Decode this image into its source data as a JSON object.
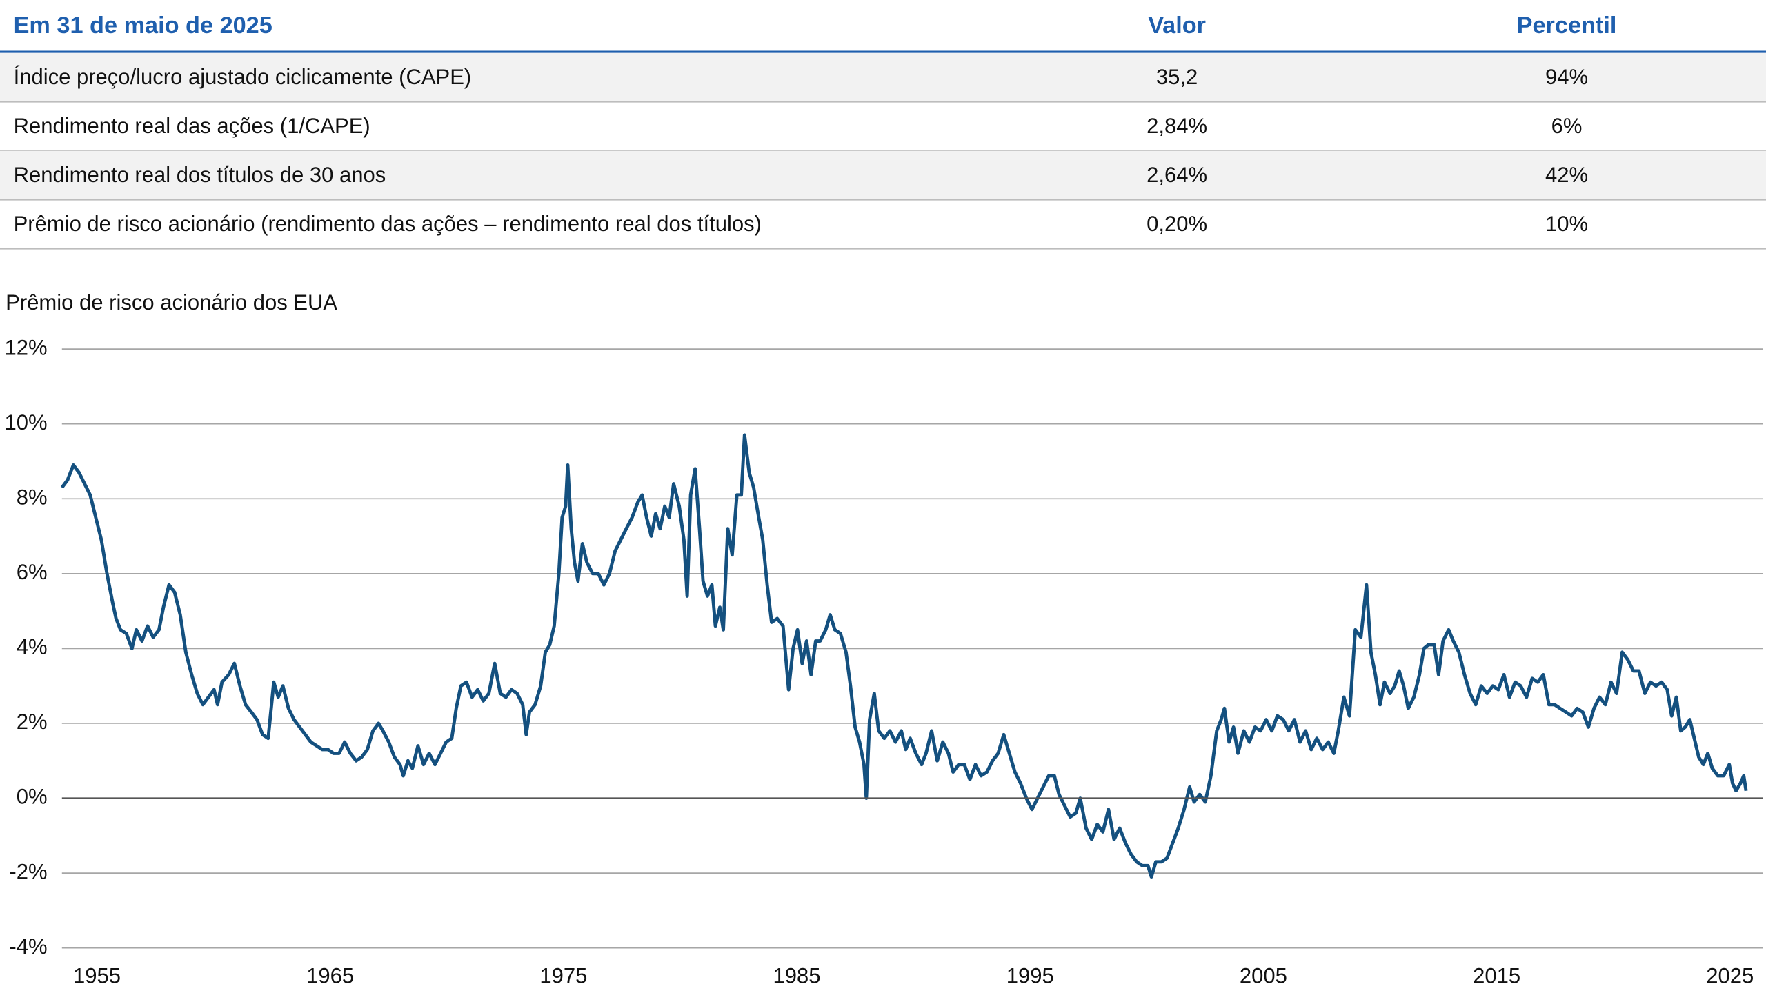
{
  "table": {
    "header": [
      "Em 31 de maio de 2025",
      "Valor",
      "Percentil"
    ],
    "rows": [
      [
        "Índice preço/lucro ajustado ciclicamente (CAPE)",
        "35,2",
        "94%"
      ],
      [
        "Rendimento real das ações (1/CAPE)",
        "2,84%",
        "6%"
      ],
      [
        "Rendimento real dos títulos de 30 anos",
        "2,64%",
        "42%"
      ],
      [
        "Prêmio de risco acionário (rendimento das ações – rendimento real dos títulos)",
        "0,20%",
        "10%"
      ]
    ]
  },
  "chart_data": {
    "type": "line",
    "title": "Prêmio de risco acionário dos EUA",
    "color": "#14507f",
    "grid": true,
    "xlim": [
      1953.5,
      2026.4
    ],
    "xticks": [
      1955,
      1965,
      1975,
      1985,
      1995,
      2005,
      2015,
      2025
    ],
    "ylim": [
      -4,
      12
    ],
    "yticks": [
      {
        "value": -4,
        "label": "-4%"
      },
      {
        "value": -2,
        "label": "-2%"
      },
      {
        "value": 0,
        "label": "0%"
      },
      {
        "value": 2,
        "label": "2%"
      },
      {
        "value": 4,
        "label": "4%"
      },
      {
        "value": 6,
        "label": "6%"
      },
      {
        "value": 8,
        "label": "8%"
      },
      {
        "value": 10,
        "label": "10%"
      },
      {
        "value": 12,
        "label": "12%"
      }
    ],
    "x": [
      1953.5,
      1953.74,
      1953.99,
      1954.23,
      1954.47,
      1954.71,
      1954.95,
      1955.19,
      1955.43,
      1955.68,
      1955.82,
      1956.01,
      1956.26,
      1956.5,
      1956.69,
      1956.93,
      1957.17,
      1957.41,
      1957.66,
      1957.85,
      1958.09,
      1958.33,
      1958.57,
      1958.81,
      1959.06,
      1959.3,
      1959.54,
      1959.78,
      1960.02,
      1960.17,
      1960.36,
      1960.65,
      1960.89,
      1961.13,
      1961.37,
      1961.62,
      1961.86,
      1962.1,
      1962.34,
      1962.58,
      1962.77,
      1962.97,
      1963.21,
      1963.45,
      1963.69,
      1963.93,
      1964.17,
      1964.42,
      1964.66,
      1964.9,
      1965.14,
      1965.38,
      1965.62,
      1965.86,
      1966.11,
      1966.35,
      1966.59,
      1966.83,
      1967.07,
      1967.26,
      1967.51,
      1967.75,
      1967.99,
      1968.13,
      1968.33,
      1968.52,
      1968.76,
      1969.0,
      1969.24,
      1969.49,
      1969.73,
      1969.97,
      1970.21,
      1970.4,
      1970.6,
      1970.84,
      1971.08,
      1971.32,
      1971.56,
      1971.8,
      1972.05,
      1972.29,
      1972.53,
      1972.77,
      1973.01,
      1973.25,
      1973.4,
      1973.54,
      1973.78,
      1974.02,
      1974.22,
      1974.41,
      1974.6,
      1974.8,
      1974.94,
      1975.09,
      1975.18,
      1975.33,
      1975.47,
      1975.62,
      1975.81,
      1976.0,
      1976.25,
      1976.49,
      1976.73,
      1976.97,
      1977.21,
      1977.45,
      1977.69,
      1977.94,
      1978.18,
      1978.37,
      1978.56,
      1978.76,
      1978.95,
      1979.14,
      1979.34,
      1979.53,
      1979.72,
      1979.96,
      1980.16,
      1980.3,
      1980.45,
      1980.64,
      1980.83,
      1980.98,
      1981.17,
      1981.36,
      1981.51,
      1981.7,
      1981.85,
      1982.04,
      1982.23,
      1982.43,
      1982.62,
      1982.76,
      1982.96,
      1983.15,
      1983.34,
      1983.54,
      1983.73,
      1983.92,
      1984.16,
      1984.41,
      1984.65,
      1984.84,
      1985.03,
      1985.23,
      1985.42,
      1985.61,
      1985.81,
      1986.0,
      1986.24,
      1986.43,
      1986.63,
      1986.87,
      1987.11,
      1987.3,
      1987.5,
      1987.69,
      1987.88,
      1987.98,
      1988.12,
      1988.32,
      1988.51,
      1988.75,
      1988.99,
      1989.23,
      1989.48,
      1989.67,
      1989.86,
      1990.1,
      1990.35,
      1990.54,
      1990.78,
      1991.02,
      1991.26,
      1991.5,
      1991.7,
      1991.94,
      1992.18,
      1992.42,
      1992.66,
      1992.9,
      1993.15,
      1993.39,
      1993.63,
      1993.87,
      1994.11,
      1994.35,
      1994.59,
      1994.84,
      1995.08,
      1995.32,
      1995.56,
      1995.8,
      1996.04,
      1996.24,
      1996.48,
      1996.72,
      1996.96,
      1997.15,
      1997.4,
      1997.64,
      1997.88,
      1998.12,
      1998.36,
      1998.6,
      1998.84,
      1999.09,
      1999.33,
      1999.57,
      1999.81,
      2000.05,
      2000.2,
      2000.39,
      2000.63,
      2000.87,
      2001.11,
      2001.35,
      2001.6,
      2001.84,
      2002.03,
      2002.27,
      2002.51,
      2002.75,
      2003.0,
      2003.19,
      2003.33,
      2003.53,
      2003.72,
      2003.91,
      2004.16,
      2004.4,
      2004.64,
      2004.88,
      2005.12,
      2005.36,
      2005.6,
      2005.85,
      2006.09,
      2006.33,
      2006.57,
      2006.81,
      2007.05,
      2007.29,
      2007.54,
      2007.78,
      2008.02,
      2008.21,
      2008.45,
      2008.69,
      2008.94,
      2009.18,
      2009.42,
      2009.61,
      2009.8,
      2010.0,
      2010.19,
      2010.43,
      2010.63,
      2010.82,
      2011.01,
      2011.21,
      2011.45,
      2011.69,
      2011.88,
      2012.07,
      2012.32,
      2012.51,
      2012.7,
      2012.94,
      2013.14,
      2013.38,
      2013.62,
      2013.86,
      2014.1,
      2014.34,
      2014.59,
      2014.83,
      2015.07,
      2015.31,
      2015.55,
      2015.79,
      2016.03,
      2016.28,
      2016.52,
      2016.76,
      2017.0,
      2017.24,
      2017.48,
      2017.72,
      2017.97,
      2018.21,
      2018.45,
      2018.69,
      2018.93,
      2019.17,
      2019.41,
      2019.66,
      2019.9,
      2020.14,
      2020.38,
      2020.62,
      2020.86,
      2021.1,
      2021.35,
      2021.59,
      2021.83,
      2022.07,
      2022.31,
      2022.5,
      2022.7,
      2022.89,
      2023.08,
      2023.28,
      2023.47,
      2023.66,
      2023.86,
      2024.05,
      2024.24,
      2024.48,
      2024.73,
      2024.97,
      2025.11,
      2025.26,
      2025.45,
      2025.59,
      2025.69
    ],
    "values": [
      8.3,
      8.5,
      8.9,
      8.7,
      8.4,
      8.1,
      7.5,
      6.9,
      6.0,
      5.2,
      4.8,
      4.5,
      4.4,
      4.0,
      4.5,
      4.2,
      4.6,
      4.3,
      4.5,
      5.1,
      5.7,
      5.5,
      4.9,
      3.9,
      3.3,
      2.8,
      2.5,
      2.7,
      2.9,
      2.5,
      3.1,
      3.3,
      3.6,
      3.0,
      2.5,
      2.3,
      2.1,
      1.7,
      1.6,
      3.1,
      2.7,
      3.0,
      2.4,
      2.1,
      1.9,
      1.7,
      1.5,
      1.4,
      1.3,
      1.3,
      1.2,
      1.2,
      1.5,
      1.2,
      1.0,
      1.1,
      1.3,
      1.8,
      2.0,
      1.8,
      1.5,
      1.1,
      0.9,
      0.6,
      1.0,
      0.8,
      1.4,
      0.9,
      1.2,
      0.9,
      1.2,
      1.5,
      1.6,
      2.4,
      3.0,
      3.1,
      2.7,
      2.9,
      2.6,
      2.8,
      3.6,
      2.8,
      2.7,
      2.9,
      2.8,
      2.5,
      1.7,
      2.3,
      2.5,
      3.0,
      3.9,
      4.1,
      4.6,
      6.0,
      7.5,
      7.8,
      8.9,
      7.2,
      6.3,
      5.8,
      6.8,
      6.3,
      6.0,
      6.0,
      5.7,
      6.0,
      6.6,
      6.9,
      7.2,
      7.5,
      7.9,
      8.1,
      7.5,
      7.0,
      7.6,
      7.2,
      7.8,
      7.5,
      8.4,
      7.8,
      6.9,
      5.4,
      8.1,
      8.8,
      7.2,
      5.8,
      5.4,
      5.7,
      4.6,
      5.1,
      4.5,
      7.2,
      6.5,
      8.1,
      8.1,
      9.7,
      8.7,
      8.3,
      7.6,
      6.9,
      5.7,
      4.7,
      4.8,
      4.6,
      2.9,
      4.0,
      4.5,
      3.6,
      4.2,
      3.3,
      4.2,
      4.2,
      4.5,
      4.9,
      4.5,
      4.4,
      3.9,
      3.0,
      1.9,
      1.5,
      0.9,
      0.0,
      2.1,
      2.8,
      1.8,
      1.6,
      1.8,
      1.5,
      1.8,
      1.3,
      1.6,
      1.2,
      0.9,
      1.2,
      1.8,
      1.0,
      1.5,
      1.2,
      0.7,
      0.9,
      0.9,
      0.5,
      0.9,
      0.6,
      0.7,
      1.0,
      1.2,
      1.7,
      1.2,
      0.7,
      0.4,
      0.0,
      -0.3,
      0.0,
      0.3,
      0.6,
      0.6,
      0.1,
      -0.2,
      -0.5,
      -0.4,
      0.0,
      -0.8,
      -1.1,
      -0.7,
      -0.9,
      -0.3,
      -1.1,
      -0.8,
      -1.2,
      -1.5,
      -1.7,
      -1.8,
      -1.8,
      -2.1,
      -1.7,
      -1.7,
      -1.6,
      -1.2,
      -0.8,
      -0.3,
      0.3,
      -0.1,
      0.1,
      -0.1,
      0.6,
      1.8,
      2.1,
      2.4,
      1.5,
      1.9,
      1.2,
      1.8,
      1.5,
      1.9,
      1.8,
      2.1,
      1.8,
      2.2,
      2.1,
      1.8,
      2.1,
      1.5,
      1.8,
      1.3,
      1.6,
      1.3,
      1.5,
      1.2,
      1.8,
      2.7,
      2.2,
      4.5,
      4.3,
      5.7,
      3.9,
      3.3,
      2.5,
      3.1,
      2.8,
      3.0,
      3.4,
      3.0,
      2.4,
      2.7,
      3.3,
      4.0,
      4.1,
      4.1,
      3.3,
      4.2,
      4.5,
      4.2,
      3.9,
      3.3,
      2.8,
      2.5,
      3.0,
      2.8,
      3.0,
      2.9,
      3.3,
      2.7,
      3.1,
      3.0,
      2.7,
      3.2,
      3.1,
      3.3,
      2.5,
      2.5,
      2.4,
      2.3,
      2.2,
      2.4,
      2.3,
      1.9,
      2.4,
      2.7,
      2.5,
      3.1,
      2.8,
      3.9,
      3.7,
      3.4,
      3.4,
      2.8,
      3.1,
      3.0,
      3.1,
      2.9,
      2.2,
      2.7,
      1.8,
      1.9,
      2.1,
      1.6,
      1.1,
      0.9,
      1.2,
      0.8,
      0.6,
      0.6,
      0.9,
      0.4,
      0.2,
      0.4,
      0.6,
      0.2
    ]
  }
}
